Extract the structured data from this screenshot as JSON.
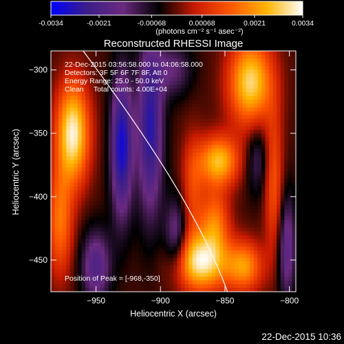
{
  "chart_data": {
    "type": "heatmap",
    "title": "Reconstructed RHESSI Image",
    "xlabel": "Heliocentric X (arcsec)",
    "ylabel": "Heliocentric Y (arcsec)",
    "xlim": [
      -985,
      -795
    ],
    "ylim": [
      -475,
      -285
    ],
    "x_ticks": [
      -950,
      -900,
      -850,
      -800
    ],
    "y_ticks": [
      -300,
      -350,
      -400,
      -450
    ],
    "colorbar": {
      "range": [
        -0.0034,
        0.0034
      ],
      "tick_values": [
        -0.0034,
        -0.0021,
        -0.00068,
        0.00068,
        0.0021,
        0.0034
      ],
      "tick_labels": [
        "-0.0034",
        "-0.0021",
        "-0.00068",
        "0.00068",
        "0.0021",
        "0.0034"
      ],
      "units_label": "(photons cm⁻² s⁻¹ asec⁻²)",
      "colors": [
        "#0000ff",
        "#3a1e88",
        "#6a2a80",
        "#000000",
        "#c81a00",
        "#ff5800",
        "#ffb400",
        "#ffffff"
      ]
    },
    "annotations": [
      "22-Dec-2015 03:56:58.000 to 04:06:58.000",
      "Detectors: 3F 5F 6F 7F 8F, Att 0",
      "Energy Range: 25.0 - 50.0 keV",
      "Clean     Total counts: 4.00E+04"
    ],
    "peak_label": "Position of Peak = [-968,-350]",
    "sources": [
      {
        "x": -968,
        "y": -350,
        "sx": 9,
        "sy": 28,
        "amp": 1.0
      },
      {
        "x": -978,
        "y": -420,
        "sx": 7,
        "sy": 30,
        "amp": 0.55
      },
      {
        "x": -868,
        "y": -452,
        "sx": 14,
        "sy": 16,
        "amp": 0.95
      },
      {
        "x": -855,
        "y": -372,
        "sx": 11,
        "sy": 14,
        "amp": 0.8
      },
      {
        "x": -858,
        "y": -420,
        "sx": 8,
        "sy": 18,
        "amp": 0.55
      },
      {
        "x": -830,
        "y": -310,
        "sx": 12,
        "sy": 24,
        "amp": 0.9
      },
      {
        "x": -835,
        "y": -455,
        "sx": 10,
        "sy": 14,
        "amp": 0.65
      },
      {
        "x": -812,
        "y": -390,
        "sx": 5,
        "sy": 40,
        "amp": 0.45
      },
      {
        "x": -875,
        "y": -395,
        "sx": 6,
        "sy": 30,
        "amp": 0.35
      },
      {
        "x": -930,
        "y": -360,
        "sx": 6,
        "sy": 40,
        "amp": -0.85
      },
      {
        "x": -908,
        "y": -345,
        "sx": 7,
        "sy": 50,
        "amp": -0.75
      },
      {
        "x": -890,
        "y": -300,
        "sx": 10,
        "sy": 15,
        "amp": -0.35
      },
      {
        "x": -950,
        "y": -455,
        "sx": 8,
        "sy": 20,
        "amp": -0.55
      },
      {
        "x": -888,
        "y": -430,
        "sx": 6,
        "sy": 20,
        "amp": -0.45
      },
      {
        "x": -802,
        "y": -440,
        "sx": 5,
        "sy": 30,
        "amp": -0.5
      },
      {
        "x": -825,
        "y": -370,
        "sx": 6,
        "sy": 20,
        "amp": -0.3
      }
    ],
    "limb_curve": [
      [
        -960,
        -285
      ],
      [
        -905,
        -360
      ],
      [
        -868,
        -420
      ],
      [
        -848,
        -475
      ]
    ]
  },
  "footer": {
    "timestamp": "22-Dec-2015 10:36"
  }
}
